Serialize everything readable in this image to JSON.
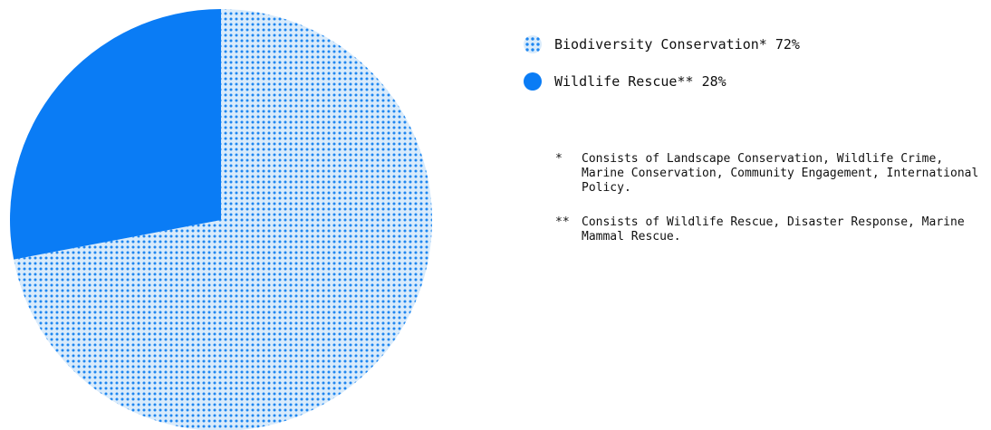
{
  "chart_data": {
    "type": "pie",
    "slices": [
      {
        "label": "Biodiversity Conservation*",
        "value": 72,
        "display": "72%",
        "color": "#1e86f0",
        "fill": "dotted"
      },
      {
        "label": "Wildlife Rescue**",
        "value": 28,
        "display": "28%",
        "color": "#0a7cf5",
        "fill": "solid"
      }
    ],
    "start_angle_deg": 0,
    "direction": "clockwise",
    "legend_placement": "right",
    "footnotes": [
      {
        "mark": "*",
        "text": "Consists of Landscape Conservation, Wildlife Crime, Marine Conservation, Community Engagement, International Policy."
      },
      {
        "mark": "**",
        "text": "Consists of Wildlife Rescue, Disaster Response, Marine Mammal Rescue."
      }
    ]
  }
}
